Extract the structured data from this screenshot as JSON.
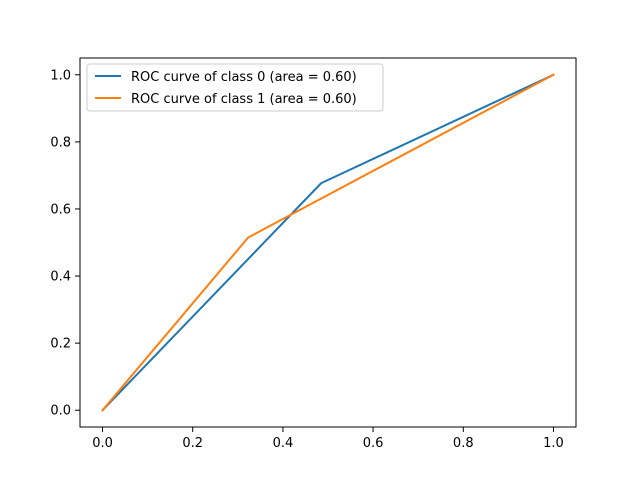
{
  "chart_data": {
    "type": "line",
    "title": "",
    "xlabel": "",
    "ylabel": "",
    "xlim": [
      -0.05,
      1.05
    ],
    "ylim": [
      -0.05,
      1.05
    ],
    "x_ticks": [
      0.0,
      0.2,
      0.4,
      0.6,
      0.8,
      1.0
    ],
    "x_tick_labels": [
      "0.0",
      "0.2",
      "0.4",
      "0.6",
      "0.8",
      "1.0"
    ],
    "y_ticks": [
      0.0,
      0.2,
      0.4,
      0.6,
      0.8,
      1.0
    ],
    "y_tick_labels": [
      "0.0",
      "0.2",
      "0.4",
      "0.6",
      "0.8",
      "1.0"
    ],
    "grid": false,
    "legend_position": "upper-left",
    "series": [
      {
        "name": "ROC curve of class 0 (area = 0.60)",
        "color": "#1f77b4",
        "x": [
          0.0,
          0.485,
          1.0
        ],
        "y": [
          0.0,
          0.677,
          1.0
        ]
      },
      {
        "name": "ROC curve of class 1 (area = 0.60)",
        "color": "#ff7f0e",
        "x": [
          0.0,
          0.323,
          1.0
        ],
        "y": [
          0.0,
          0.515,
          1.0
        ]
      }
    ]
  }
}
